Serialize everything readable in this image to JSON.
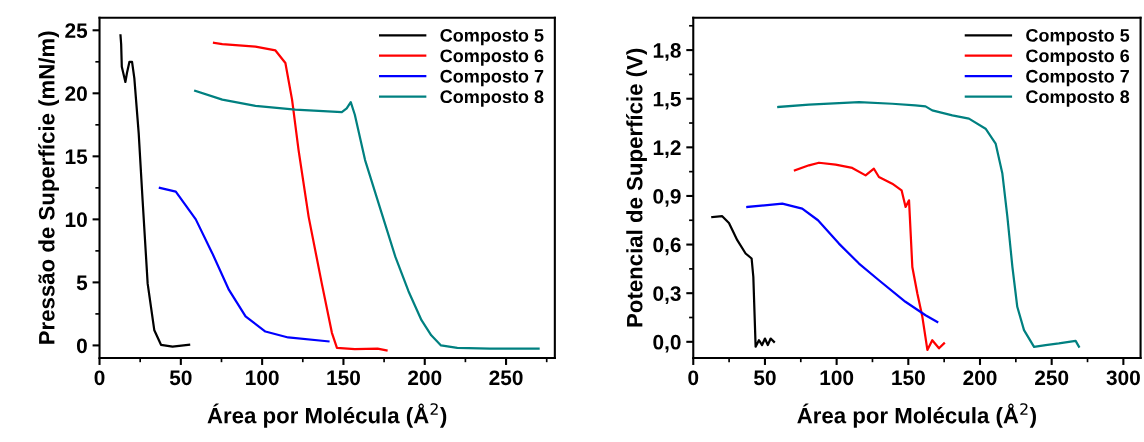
{
  "chart_data": [
    {
      "type": "line",
      "xlabel": "Área por Molécula (Å$^{2}$)",
      "ylabel": "Pressão de Superfície (mN/m)",
      "xlim": [
        0,
        280
      ],
      "xticks": [
        0,
        50,
        100,
        150,
        200,
        250
      ],
      "ylim": [
        -1,
        26
      ],
      "yticks": [
        0,
        5,
        10,
        15,
        20,
        25
      ],
      "legend": "top right",
      "grid": false,
      "series": [
        {
          "name": "Composto 5",
          "color": "#000000",
          "x": [
            12.9,
            13.3,
            13.7,
            15.9,
            17,
            18.4,
            20,
            21.4,
            24.1,
            26.5,
            29.6,
            33.7,
            37.8,
            44.9,
            55.1
          ],
          "values": [
            24.6,
            23.9,
            22.1,
            20.9,
            21.7,
            22.5,
            22.5,
            21.2,
            16.8,
            11.5,
            4.9,
            1.2,
            0.05,
            -0.1,
            0.05
          ]
        },
        {
          "name": "Composto 6",
          "color": "#ff0000",
          "x": [
            70.4,
            75.5,
            95.9,
            108.2,
            114.3,
            118.4,
            122.4,
            128.6,
            136.7,
            142.9,
            146,
            157,
            171,
            176.5
          ],
          "values": [
            24.0,
            23.9,
            23.7,
            23.4,
            22.4,
            19.5,
            15.5,
            10.2,
            4.9,
            1.0,
            -0.2,
            -0.3,
            -0.26,
            -0.4
          ]
        },
        {
          "name": "Composto 7",
          "color": "#0000ff",
          "x": [
            37.1,
            46.9,
            59.2,
            69.4,
            79.6,
            89.8,
            102,
            116,
            140.8
          ],
          "values": [
            12.5,
            12.2,
            10.0,
            7.3,
            4.4,
            2.3,
            1.1,
            0.63,
            0.32
          ]
        },
        {
          "name": "Composto 8",
          "color": "#008080",
          "x": [
            58.8,
            75.5,
            95.9,
            120.4,
            149,
            152,
            154.5,
            157,
            163.3,
            173.5,
            182,
            190,
            198,
            204,
            210,
            220,
            240,
            270
          ],
          "values": [
            20.2,
            19.5,
            19.0,
            18.7,
            18.5,
            18.8,
            19.3,
            18.3,
            14.7,
            10.5,
            7.0,
            4.3,
            2.0,
            0.8,
            0.0,
            -0.2,
            -0.25,
            -0.25
          ]
        }
      ]
    },
    {
      "type": "line",
      "xlabel": "Área por Molécula (Å$^{2}$)",
      "ylabel": "Potencial de Superfície (V)",
      "xlim": [
        0,
        312
      ],
      "xticks": [
        0,
        50,
        100,
        150,
        200,
        250,
        300
      ],
      "ylim": [
        -0.1,
        2.0
      ],
      "yticks": [
        {
          "value": 0,
          "label": "0,0"
        },
        {
          "value": 0.3,
          "label": "0,3"
        },
        {
          "value": 0.6,
          "label": "0,6"
        },
        {
          "value": 0.9,
          "label": "0,9"
        },
        {
          "value": 1.2,
          "label": "1,2"
        },
        {
          "value": 1.5,
          "label": "1,5"
        },
        {
          "value": 1.8,
          "label": "1,8"
        }
      ],
      "legend": "top right",
      "grid": false,
      "series": [
        {
          "name": "Composto 5",
          "color": "#000000",
          "x": [
            13.3,
            20.2,
            24.9,
            30.7,
            36.5,
            40.7,
            41.9,
            43.5,
            45.8,
            48,
            50,
            52,
            54,
            56.3
          ],
          "values": [
            0.77,
            0.775,
            0.733,
            0.627,
            0.545,
            0.514,
            0.4,
            -0.03,
            0.01,
            -0.02,
            0.02,
            -0.02,
            0.02,
            0.0
          ]
        },
        {
          "name": "Composto 6",
          "color": "#ff0000",
          "x": [
            70.9,
            80.7,
            87.7,
            99.3,
            110.9,
            120.2,
            126,
            129.5,
            138.8,
            145.3,
            148.1,
            150.5,
            152.8,
            156.3,
            159.8,
            163.3,
            166.7,
            171.4,
            174.9
          ],
          "values": [
            1.058,
            1.089,
            1.105,
            1.093,
            1.073,
            1.027,
            1.068,
            1.017,
            0.976,
            0.935,
            0.832,
            0.873,
            0.462,
            0.298,
            0.154,
            -0.05,
            0.01,
            -0.04,
            -0.01
          ]
        },
        {
          "name": "Composto 7",
          "color": "#0000ff",
          "x": [
            37.7,
            62.1,
            76,
            87,
            101.6,
            115.6,
            129.5,
            148,
            162,
            170.2
          ],
          "values": [
            0.832,
            0.853,
            0.822,
            0.75,
            0.606,
            0.483,
            0.38,
            0.247,
            0.164,
            0.123
          ]
        },
        {
          "name": "Composto 8",
          "color": "#008080",
          "x": [
            59.3,
            80.7,
            115.6,
            138.8,
            154.9,
            162,
            166.7,
            180.7,
            192.3,
            203.9,
            210.9,
            215.6,
            219.1,
            222.6,
            226,
            230.7,
            237.7,
            245.8,
            255,
            266.7,
            269
          ],
          "values": [
            1.449,
            1.463,
            1.479,
            1.469,
            1.459,
            1.453,
            1.428,
            1.397,
            1.377,
            1.315,
            1.223,
            1.038,
            0.771,
            0.462,
            0.216,
            0.072,
            -0.031,
            -0.02,
            -0.01,
            0.006,
            -0.03
          ]
        }
      ]
    }
  ]
}
